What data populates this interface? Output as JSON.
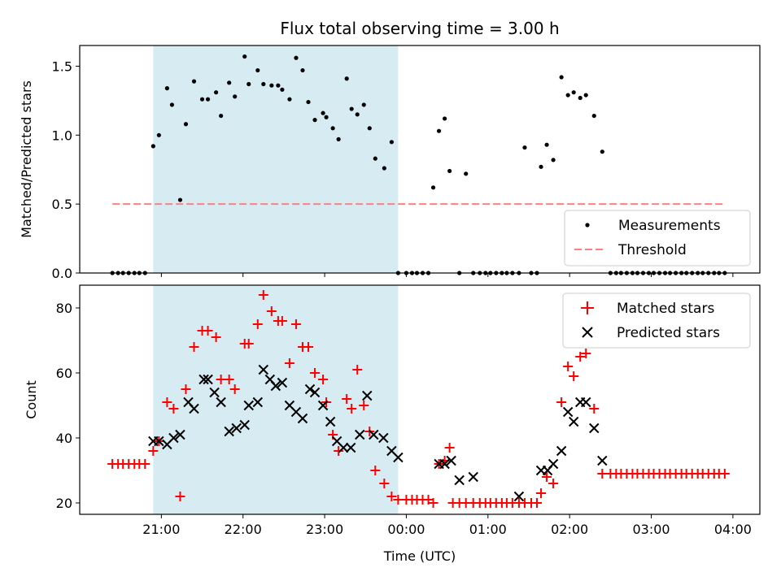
{
  "chart_data": [
    {
      "type": "scatter",
      "title": "Flux total observing time = 3.00 h",
      "xlabel": "",
      "ylabel": "Matched/Predicted stars",
      "x_unit": "hours since 00:00 UTC (negative = previous day)",
      "xlim": [
        -4.0,
        4.33
      ],
      "ylim": [
        0.0,
        1.65
      ],
      "yticks": [
        0.0,
        0.5,
        1.0,
        1.5
      ],
      "ytick_labels": [
        "0.0",
        "0.5",
        "1.0",
        "1.5"
      ],
      "shaded_region": {
        "x0": -3.1,
        "x1": -0.1,
        "color": "#add8e6"
      },
      "threshold": {
        "name": "Threshold",
        "value": 0.5,
        "x0": -3.6,
        "x1": 3.9,
        "color": "#ff8080"
      },
      "legend": {
        "placement": "lower right",
        "entries": [
          "Measurements",
          "Threshold"
        ]
      },
      "series": [
        {
          "name": "Measurements",
          "color": "#000000",
          "x": [
            -3.6,
            -3.53,
            -3.47,
            -3.4,
            -3.33,
            -3.27,
            -3.2,
            -3.1,
            -3.03,
            -2.93,
            -2.87,
            -2.77,
            -2.7,
            -2.6,
            -2.5,
            -2.43,
            -2.33,
            -2.27,
            -2.17,
            -2.1,
            -1.98,
            -1.93,
            -1.82,
            -1.75,
            -1.65,
            -1.57,
            -1.52,
            -1.43,
            -1.35,
            -1.27,
            -1.2,
            -1.12,
            -1.02,
            -0.98,
            -0.9,
            -0.83,
            -0.73,
            -0.67,
            -0.6,
            -0.52,
            -0.45,
            -0.38,
            -0.27,
            -0.18,
            -0.1,
            0.0,
            0.07,
            0.13,
            0.2,
            0.27,
            0.33,
            0.4,
            0.47,
            0.53,
            0.65,
            0.73,
            0.82,
            0.9,
            0.97,
            1.03,
            1.1,
            1.17,
            1.23,
            1.3,
            1.38,
            1.45,
            1.53,
            1.6,
            1.65,
            1.72,
            1.8,
            1.9,
            1.98,
            2.05,
            2.13,
            2.2,
            2.3,
            2.4,
            2.5,
            2.57,
            2.63,
            2.7,
            2.77,
            2.83,
            2.9,
            2.97,
            3.03,
            3.1,
            3.17,
            3.23,
            3.3,
            3.37,
            3.43,
            3.5,
            3.57,
            3.63,
            3.7,
            3.77,
            3.83,
            3.9
          ],
          "y": [
            0,
            0,
            0,
            0,
            0,
            0,
            0,
            0.92,
            1.0,
            1.34,
            1.22,
            0.53,
            1.08,
            1.39,
            1.26,
            1.26,
            1.31,
            1.14,
            1.38,
            1.28,
            1.57,
            1.37,
            1.47,
            1.37,
            1.36,
            1.36,
            1.33,
            1.26,
            1.56,
            1.47,
            1.24,
            1.11,
            1.16,
            1.13,
            1.05,
            0.97,
            1.41,
            1.19,
            1.15,
            1.22,
            1.05,
            0.83,
            0.76,
            0.95,
            0,
            0,
            0,
            0,
            0,
            0,
            0.62,
            1.03,
            1.12,
            0.74,
            0,
            0.72,
            0,
            0,
            0,
            0,
            0,
            0,
            0,
            0,
            0,
            0.91,
            0,
            0,
            0.77,
            0.93,
            0.82,
            1.42,
            1.29,
            1.31,
            1.27,
            1.29,
            1.14,
            0.88,
            0,
            0,
            0,
            0,
            0,
            0,
            0,
            0,
            0,
            0,
            0,
            0,
            0,
            0,
            0,
            0,
            0,
            0,
            0,
            0,
            0,
            0
          ]
        }
      ]
    },
    {
      "type": "scatter",
      "title": "",
      "xlabel": "Time (UTC)",
      "ylabel": "Count",
      "x_unit": "hours since 00:00 UTC (negative = previous day)",
      "xlim": [
        -4.0,
        4.33
      ],
      "ylim": [
        16.5,
        87.0
      ],
      "yticks": [
        20,
        40,
        60,
        80
      ],
      "ytick_labels": [
        "20",
        "40",
        "60",
        "80"
      ],
      "xticks": [
        -3,
        -2,
        -1,
        0,
        1,
        2,
        3,
        4
      ],
      "xtick_labels": [
        "21:00",
        "22:00",
        "23:00",
        "00:00",
        "01:00",
        "02:00",
        "03:00",
        "04:00"
      ],
      "shaded_region": {
        "x0": -3.1,
        "x1": -0.1,
        "color": "#add8e6"
      },
      "legend": {
        "placement": "upper right",
        "entries": [
          "Matched stars",
          "Predicted stars"
        ]
      },
      "series": [
        {
          "name": "Matched stars",
          "marker": "plus",
          "color": "#ff0000",
          "x": [
            -3.6,
            -3.53,
            -3.47,
            -3.4,
            -3.33,
            -3.27,
            -3.2,
            -3.1,
            -3.03,
            -2.93,
            -2.85,
            -2.77,
            -2.7,
            -2.6,
            -2.5,
            -2.43,
            -2.33,
            -2.27,
            -2.17,
            -2.1,
            -1.98,
            -1.93,
            -1.82,
            -1.75,
            -1.65,
            -1.57,
            -1.52,
            -1.43,
            -1.35,
            -1.27,
            -1.2,
            -1.12,
            -1.02,
            -0.98,
            -0.9,
            -0.83,
            -0.73,
            -0.67,
            -0.6,
            -0.52,
            -0.45,
            -0.38,
            -0.27,
            -0.18,
            -0.1,
            0.0,
            0.07,
            0.13,
            0.2,
            0.27,
            0.33,
            0.4,
            0.47,
            0.53,
            0.57,
            0.65,
            0.73,
            0.82,
            0.9,
            0.97,
            1.03,
            1.1,
            1.17,
            1.23,
            1.3,
            1.38,
            1.45,
            1.53,
            1.6,
            1.65,
            1.72,
            1.8,
            1.9,
            1.98,
            2.05,
            2.13,
            2.2,
            2.3,
            2.4,
            2.5,
            2.57,
            2.63,
            2.7,
            2.77,
            2.83,
            2.9,
            2.97,
            3.03,
            3.1,
            3.17,
            3.23,
            3.3,
            3.37,
            3.43,
            3.5,
            3.57,
            3.63,
            3.7,
            3.77,
            3.83,
            3.9
          ],
          "y": [
            32,
            32,
            32,
            32,
            32,
            32,
            32,
            36,
            39,
            51,
            49,
            22,
            55,
            68,
            73,
            73,
            71,
            58,
            58,
            55,
            69,
            69,
            75,
            84,
            79,
            76,
            76,
            63,
            75,
            68,
            68,
            60,
            58,
            51,
            41,
            36,
            52,
            49,
            61,
            50,
            42,
            30,
            26,
            22,
            21,
            21,
            21,
            21,
            21,
            21,
            20,
            32,
            33,
            37,
            20,
            20,
            20,
            20,
            20,
            20,
            20,
            20,
            20,
            20,
            20,
            20,
            20,
            20,
            20,
            23,
            28,
            26,
            51,
            62,
            59,
            65,
            66,
            49,
            29,
            29,
            29,
            29,
            29,
            29,
            29,
            29,
            29,
            29,
            29,
            29,
            29,
            29,
            29,
            29,
            29,
            29,
            29,
            29,
            29,
            29,
            29
          ]
        },
        {
          "name": "Predicted stars",
          "marker": "x",
          "color": "#000000",
          "x": [
            -3.1,
            -3.03,
            -2.93,
            -2.85,
            -2.77,
            -2.67,
            -2.6,
            -2.48,
            -2.43,
            -2.35,
            -2.27,
            -2.17,
            -2.08,
            -1.98,
            -1.93,
            -1.82,
            -1.75,
            -1.67,
            -1.6,
            -1.52,
            -1.43,
            -1.35,
            -1.27,
            -1.18,
            -1.12,
            -1.02,
            -0.93,
            -0.85,
            -0.77,
            -0.68,
            -0.57,
            -0.48,
            -0.4,
            -0.28,
            -0.18,
            -0.1,
            0.4,
            0.47,
            0.55,
            0.65,
            0.82,
            1.38,
            1.65,
            1.73,
            1.8,
            1.9,
            1.98,
            2.05,
            2.13,
            2.2,
            2.3,
            2.4
          ],
          "y": [
            39,
            39,
            38,
            40,
            41,
            51,
            49,
            58,
            58,
            54,
            51,
            42,
            43,
            44,
            50,
            51,
            61,
            58,
            56,
            57,
            50,
            48,
            46,
            55,
            54,
            50,
            45,
            39,
            37,
            37,
            41,
            53,
            41,
            40,
            36,
            34,
            32,
            32,
            33,
            27,
            28,
            22,
            30,
            30,
            32,
            36,
            48,
            45,
            51,
            51,
            43,
            33
          ]
        }
      ]
    }
  ]
}
